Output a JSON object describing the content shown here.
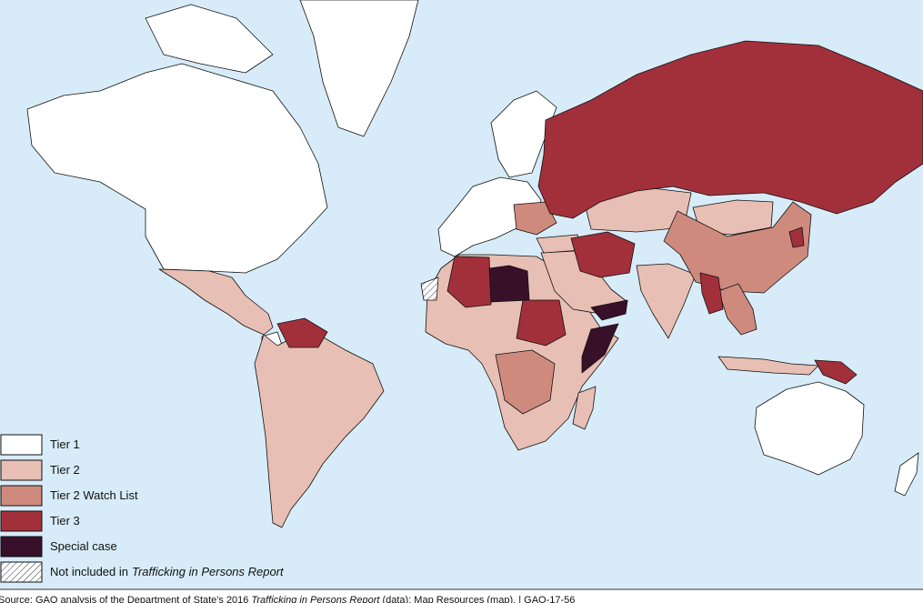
{
  "legend": {
    "items": [
      {
        "label": "Tier 1",
        "color": "#ffffff"
      },
      {
        "label": "Tier 2",
        "color": "#e8bfb4"
      },
      {
        "label": "Tier 2 Watch List",
        "color": "#cf8a7e"
      },
      {
        "label": "Tier 3",
        "color": "#a2303b"
      },
      {
        "label": "Special case",
        "color": "#38102a"
      },
      {
        "label": "Not included in",
        "label_italic": "Trafficking in Persons Report",
        "color": "#ffffff",
        "pattern": "hatch"
      }
    ]
  },
  "source": {
    "before": "Source: GAO analysis of the Department of State's 2016",
    "italic": "Trafficking in Persons Report",
    "after": "(data); Map Resources (map).  |  GAO-17-56"
  }
}
